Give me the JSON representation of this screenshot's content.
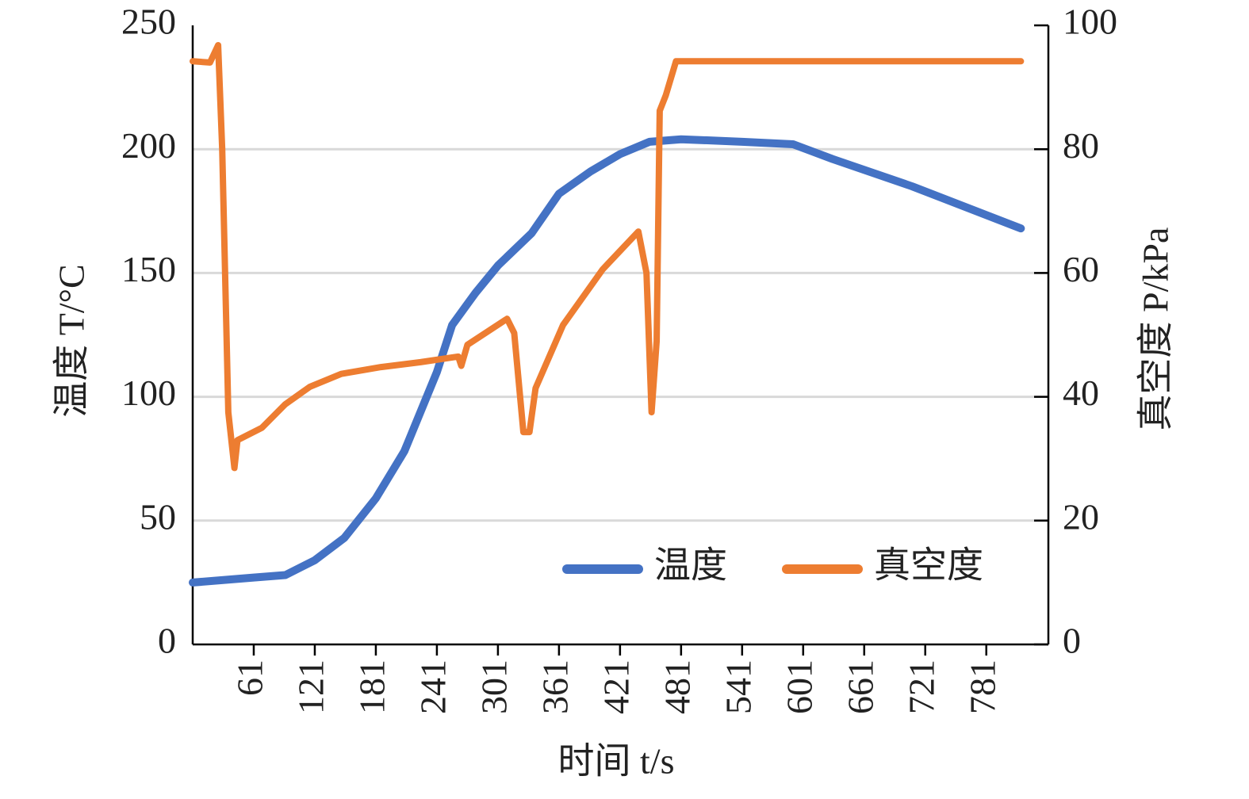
{
  "chart_data": {
    "type": "line",
    "xlabel": "时间 t/s",
    "ylabel": "温度 T/°C",
    "y2label": "真空度 P/kPa",
    "xlim": [
      1,
      842
    ],
    "xticks": [
      61,
      121,
      181,
      241,
      301,
      361,
      421,
      481,
      541,
      601,
      661,
      721,
      781
    ],
    "ylim": [
      0,
      250
    ],
    "yticks": [
      0,
      50,
      100,
      150,
      200,
      250
    ],
    "y2lim": [
      0,
      100
    ],
    "y2ticks": [
      0,
      20,
      40,
      60,
      80,
      100
    ],
    "grid": true,
    "legend": "lower right",
    "series": [
      {
        "name": "温度",
        "color": "#4472c4",
        "x": [
          1,
          61,
          92,
          121,
          150,
          181,
          209,
          241,
          256,
          279,
          301,
          334,
          361,
          392,
          421,
          450,
          481,
          541,
          591,
          630,
          708,
          815
        ],
        "values": [
          25,
          27,
          28,
          34,
          43,
          59,
          78,
          110,
          129,
          142,
          153,
          166,
          182,
          191,
          198,
          203,
          204,
          203,
          202,
          196,
          185,
          168
        ]
      },
      {
        "name": "真空度",
        "color": "#ed7d31",
        "axis": "y2",
        "x": [
          1,
          18,
          26,
          30,
          36,
          42,
          45,
          69,
          92,
          116,
          147,
          186,
          225,
          262,
          265,
          271,
          310,
          317,
          326,
          332,
          338,
          365,
          404,
          439,
          447,
          452,
          457,
          460,
          466,
          476,
          591,
          815
        ],
        "values": [
          94.2,
          94,
          96.8,
          80,
          37.5,
          28.5,
          33,
          35,
          38.8,
          41.6,
          43.7,
          44.8,
          45.6,
          46.5,
          45,
          48.4,
          52.6,
          50.3,
          34.3,
          34.3,
          41.4,
          51.6,
          60.6,
          66.7,
          60,
          37.5,
          49,
          86.2,
          88.7,
          94.2,
          94.2,
          94.2
        ]
      }
    ]
  }
}
